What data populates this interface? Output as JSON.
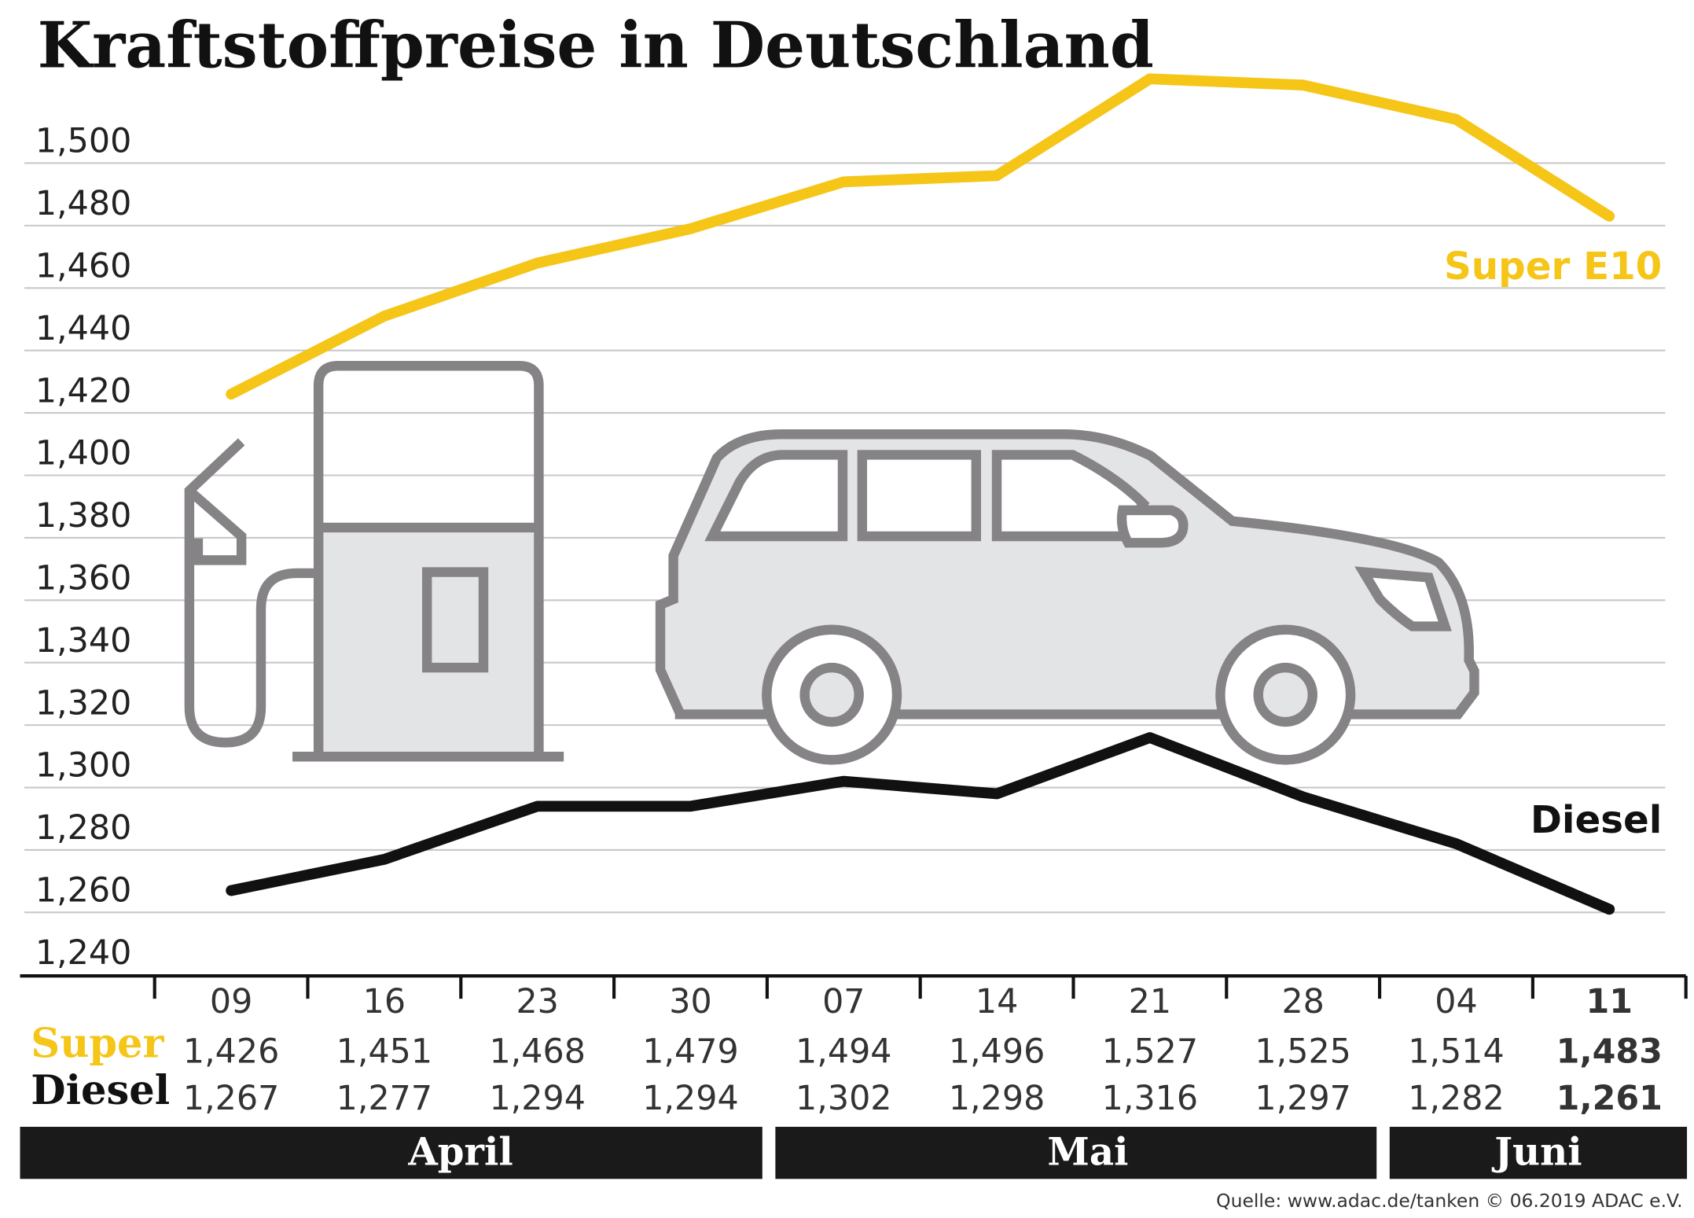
{
  "chart_data": {
    "type": "line",
    "title": "Kraftstoffpreise in Deutschland",
    "categories": [
      "09",
      "16",
      "23",
      "30",
      "07",
      "14",
      "21",
      "28",
      "04",
      "11"
    ],
    "series": [
      {
        "name": "Super E10",
        "row_label": "Super",
        "color": "#f5c518",
        "values": [
          1.426,
          1.451,
          1.468,
          1.479,
          1.494,
          1.496,
          1.527,
          1.525,
          1.514,
          1.483
        ],
        "value_labels": [
          "1,426",
          "1,451",
          "1,468",
          "1,479",
          "1,494",
          "1,496",
          "1,527",
          "1,525",
          "1,514",
          "1,483"
        ]
      },
      {
        "name": "Diesel",
        "row_label": "Diesel",
        "color": "#111111",
        "values": [
          1.267,
          1.277,
          1.294,
          1.294,
          1.302,
          1.298,
          1.316,
          1.297,
          1.282,
          1.261
        ],
        "value_labels": [
          "1,267",
          "1,277",
          "1,294",
          "1,294",
          "1,302",
          "1,298",
          "1,316",
          "1,297",
          "1,282",
          "1,261"
        ]
      }
    ],
    "months": [
      "April",
      "Mai",
      "Juni"
    ],
    "ylim": [
      1.24,
      1.53
    ],
    "yticks": [
      {
        "value": 1.24,
        "label": "1,240"
      },
      {
        "value": 1.26,
        "label": "1,260"
      },
      {
        "value": 1.28,
        "label": "1,280"
      },
      {
        "value": 1.3,
        "label": "1,300"
      },
      {
        "value": 1.32,
        "label": "1,320"
      },
      {
        "value": 1.34,
        "label": "1,340"
      },
      {
        "value": 1.36,
        "label": "1,360"
      },
      {
        "value": 1.38,
        "label": "1,380"
      },
      {
        "value": 1.4,
        "label": "1,400"
      },
      {
        "value": 1.42,
        "label": "1,420"
      },
      {
        "value": 1.44,
        "label": "1,440"
      },
      {
        "value": 1.46,
        "label": "1,460"
      },
      {
        "value": 1.48,
        "label": "1,480"
      },
      {
        "value": 1.5,
        "label": "1,500"
      }
    ],
    "grid": true,
    "source": "Quelle: www.adac.de/tanken   © 06.2019  ADAC e.V."
  }
}
